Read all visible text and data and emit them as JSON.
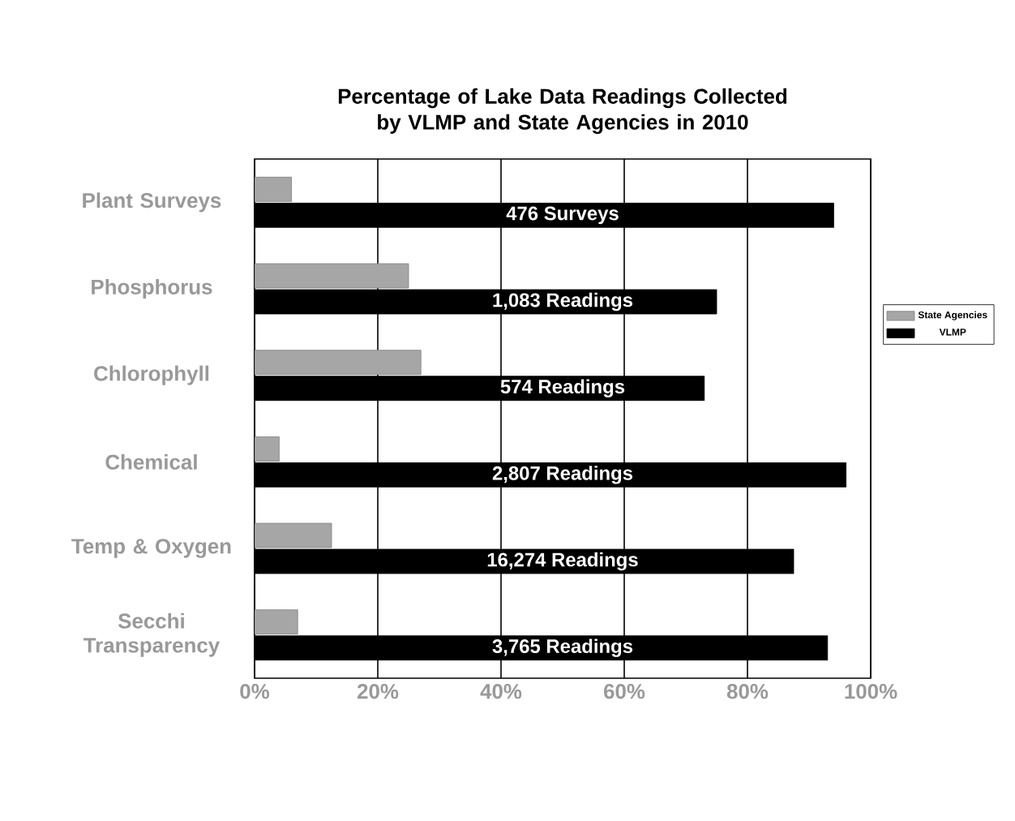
{
  "chart_data": {
    "type": "bar",
    "orientation": "horizontal",
    "title": "Percentage of Lake Data Readings Collected by VLMP and State Agencies in 2010",
    "categories": [
      "Plant Surveys",
      "Phosphorus",
      "Chlorophyll",
      "Chemical",
      "Temp & Oxygen",
      "Secchi Transparency"
    ],
    "series": [
      {
        "name": "State Agencies",
        "color": "#a6a6a6",
        "values": [
          6,
          25,
          27,
          4,
          12.5,
          7
        ]
      },
      {
        "name": "VLMP",
        "color": "#000000",
        "values": [
          94,
          75,
          73,
          96,
          87.5,
          93
        ]
      }
    ],
    "annotations": [
      "476 Surveys",
      "1,083 Readings",
      "574 Readings",
      "2,807 Readings",
      "16,274 Readings",
      "3,765 Readings"
    ],
    "xlim": [
      0,
      100
    ],
    "xticks": [
      {
        "value": 0,
        "label": "0%"
      },
      {
        "value": 20,
        "label": "20%"
      },
      {
        "value": 40,
        "label": "40%"
      },
      {
        "value": 60,
        "label": "60%"
      },
      {
        "value": 80,
        "label": "80%"
      },
      {
        "value": 100,
        "label": "100%"
      }
    ],
    "grid": "x",
    "legend": "right"
  }
}
